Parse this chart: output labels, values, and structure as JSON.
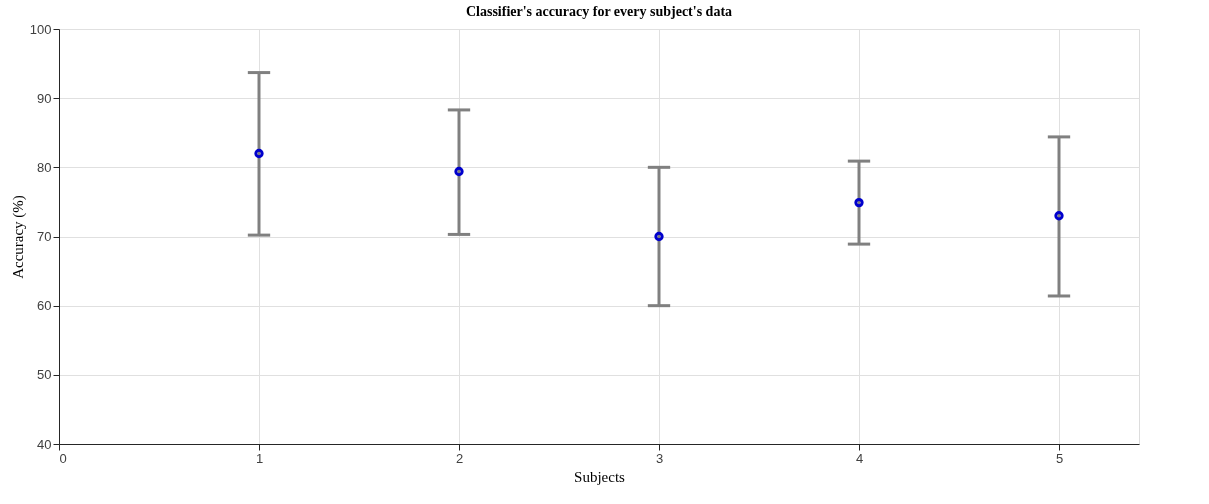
{
  "chart_data": {
    "type": "scatter",
    "title": "Classifier's accuracy for every subject's data",
    "xlabel": "Subjects",
    "ylabel": "Accuracy (%)",
    "x": [
      1,
      2,
      3,
      4,
      5
    ],
    "series": [
      {
        "color": "#0000cc",
        "values": [
          82.0,
          79.4,
          70.0,
          74.9,
          73.0
        ],
        "errors": [
          [
            70.2,
            93.7
          ],
          [
            70.3,
            88.3
          ],
          [
            60.0,
            80.0
          ],
          [
            68.9,
            80.9
          ],
          [
            61.4,
            84.4
          ]
        ]
      }
    ],
    "xlim": [
      0,
      5.4
    ],
    "xticks": [
      0,
      1,
      2,
      3,
      4,
      5
    ],
    "ylim": [
      40,
      100
    ],
    "yticks": [
      40,
      50,
      60,
      70,
      80,
      90,
      100
    ],
    "grid": true,
    "marker": "circle"
  }
}
